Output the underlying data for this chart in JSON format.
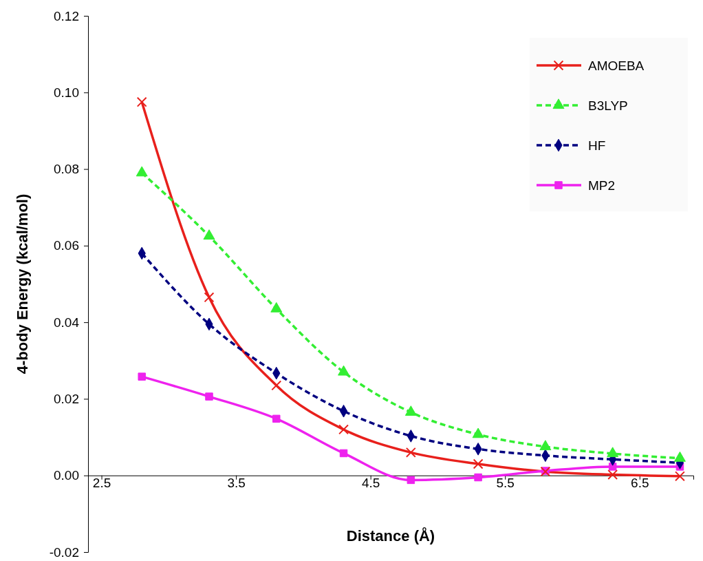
{
  "chart_data": {
    "type": "line",
    "xlabel": "Distance (Å)",
    "ylabel": "4-body Energy (kcal/mol)",
    "x": [
      2.8,
      3.3,
      3.8,
      4.3,
      4.8,
      5.3,
      5.8,
      6.3,
      6.8
    ],
    "xlim": [
      2.4,
      6.9
    ],
    "xticks": [
      2.5,
      3.5,
      4.5,
      5.5,
      6.5
    ],
    "ylim": [
      -0.02,
      0.12
    ],
    "yticks": [
      -0.02,
      {
        "value": 0,
        "label": "0.00"
      },
      0.02,
      0.04,
      0.06,
      0.08,
      {
        "value": 0.1,
        "label": "0.10"
      },
      0.12
    ],
    "legend": "top right",
    "grid": false,
    "series": [
      {
        "name": "AMOEBA",
        "color": "#e8201c",
        "marker": "cross",
        "line_style": "solid",
        "values": [
          0.0975,
          0.0465,
          0.0235,
          0.012,
          0.006,
          0.003,
          0.001,
          0.0002,
          -0.0002
        ]
      },
      {
        "name": "B3LYP",
        "color": "#33ee33",
        "marker": "triangle",
        "line_style": "dashed",
        "values": [
          0.079,
          0.0625,
          0.0435,
          0.027,
          0.0165,
          0.0107,
          0.0075,
          0.0057,
          0.0045
        ]
      },
      {
        "name": "HF",
        "color": "#000080",
        "marker": "diamond",
        "line_style": "dashed",
        "values": [
          0.058,
          0.0395,
          0.0267,
          0.0168,
          0.0103,
          0.0069,
          0.0052,
          0.0042,
          0.0033
        ]
      },
      {
        "name": "MP2",
        "color": "#ee22ee",
        "marker": "square",
        "line_style": "solid",
        "values": [
          0.0258,
          0.0206,
          0.0148,
          0.0058,
          -0.0012,
          -0.0005,
          0.0012,
          0.0023,
          0.0023
        ]
      }
    ]
  }
}
